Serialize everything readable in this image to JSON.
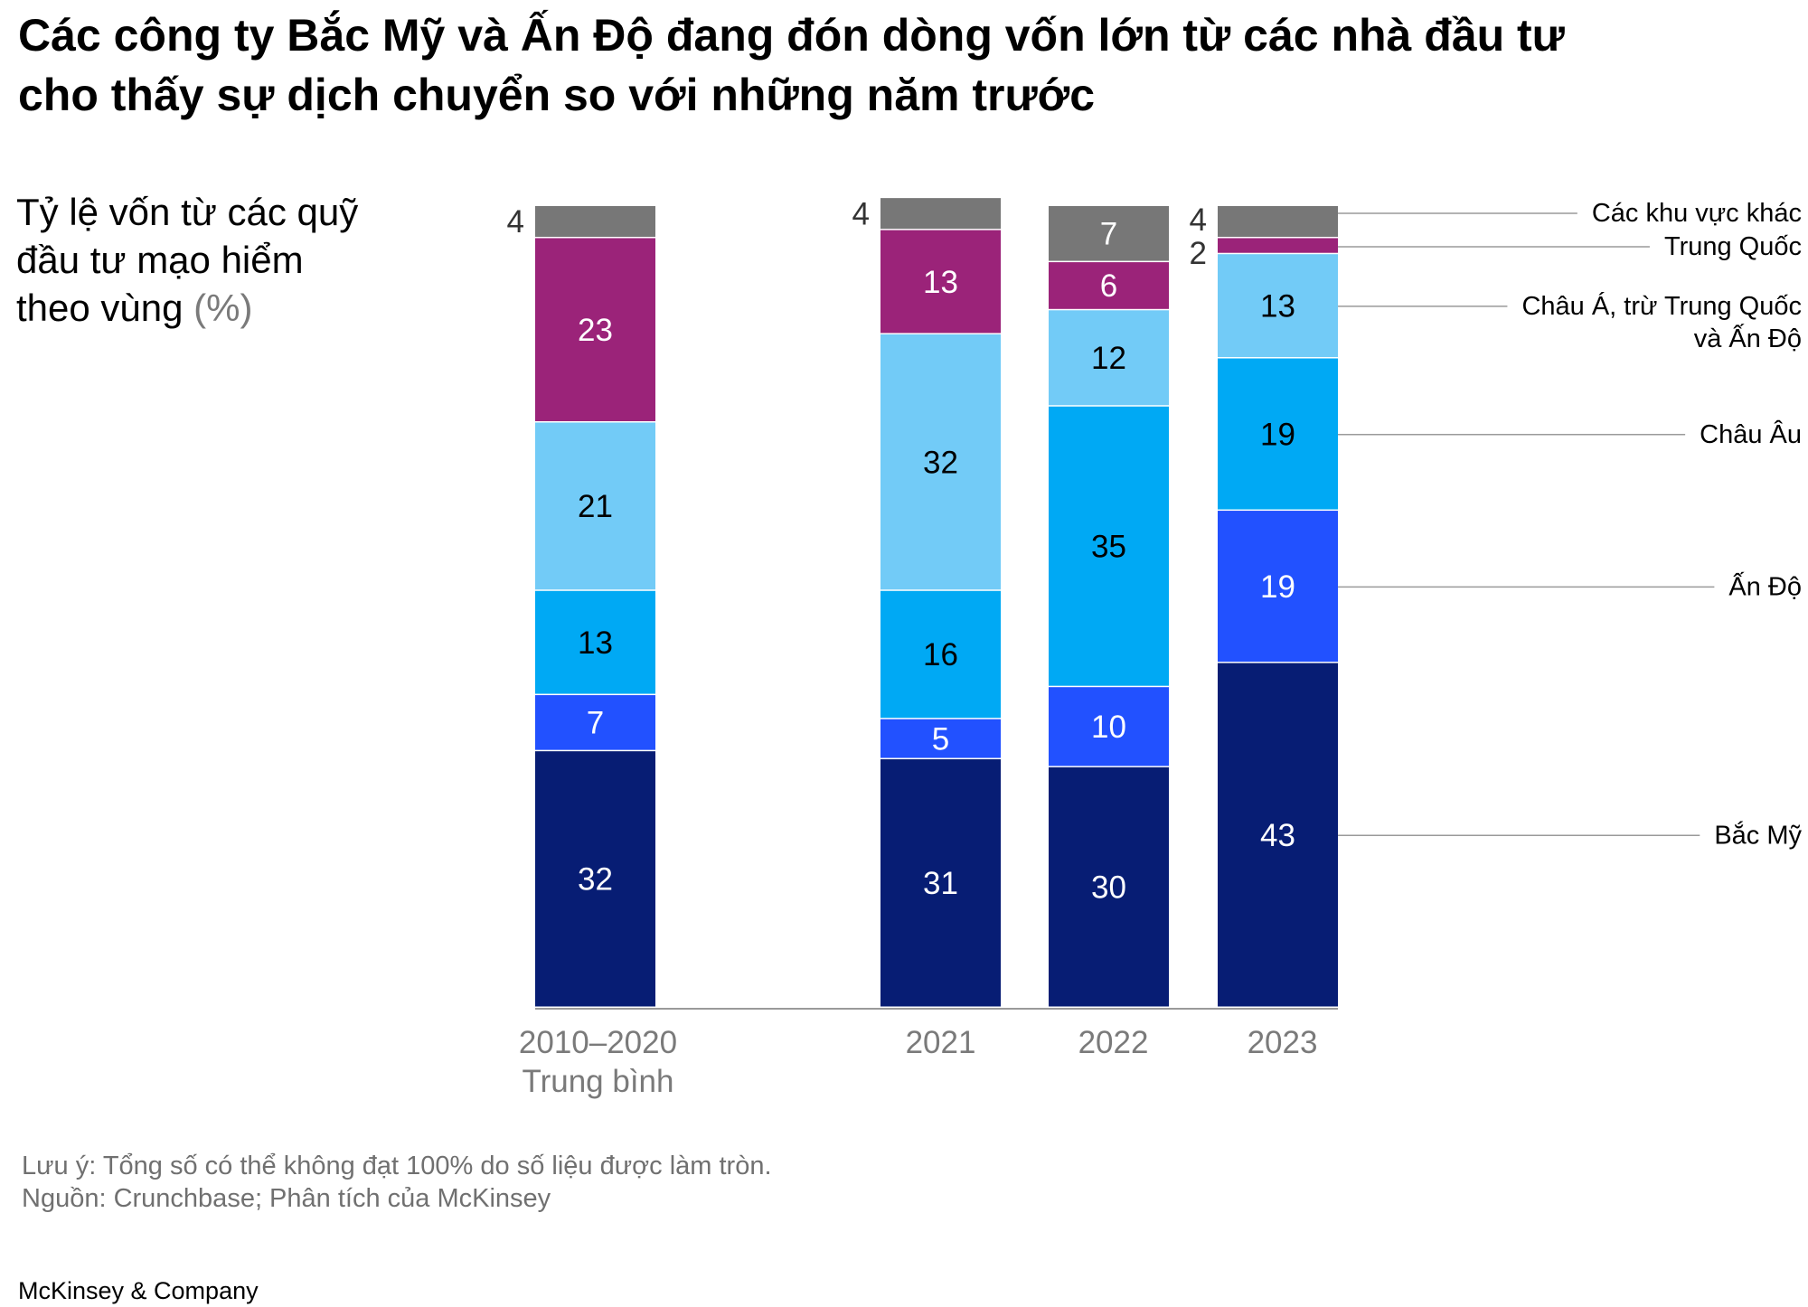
{
  "title_line1": "Các công ty Bắc Mỹ và Ấn Độ đang đón dòng vốn lớn từ các nhà đầu tư",
  "title_line2": "cho thấy sự dịch chuyển so với những năm trước",
  "subtitle": {
    "line1": "Tỷ lệ vốn từ các quỹ",
    "line2": "đầu tư mạo hiểm",
    "line3": "theo vùng",
    "unit": "(%)"
  },
  "footnotes": {
    "note": "Lưu ý: Tổng số có thể không đạt 100% do số liệu được làm tròn.",
    "source": "Nguồn: Crunchbase; Phân tích của McKinsey"
  },
  "brand": "McKinsey & Company",
  "chart_data": {
    "type": "bar",
    "stacked": true,
    "title": "Tỷ lệ vốn từ các quỹ đầu tư mạo hiểm theo vùng (%)",
    "categories": [
      {
        "label": "2010–2020",
        "sublabel": "Trung bình"
      },
      {
        "label": "2021",
        "sublabel": ""
      },
      {
        "label": "2022",
        "sublabel": ""
      },
      {
        "label": "2023",
        "sublabel": ""
      }
    ],
    "series": [
      {
        "name": "Bắc Mỹ",
        "color": "#071d74",
        "label_color": "#ffffff",
        "values": [
          32,
          31,
          30,
          43
        ]
      },
      {
        "name": "Ấn Độ",
        "color": "#2251ff",
        "label_color": "#ffffff",
        "values": [
          7,
          5,
          10,
          19
        ]
      },
      {
        "name": "Châu Âu",
        "color": "#00a9f4",
        "label_color": "#000000",
        "values": [
          13,
          16,
          35,
          19
        ]
      },
      {
        "name": "Châu Á, trừ Trung Quốc và Ấn Độ",
        "legend_lines": [
          "Châu Á, trừ Trung Quốc",
          "và Ấn Độ"
        ],
        "color": "#72cbf7",
        "label_color": "#000000",
        "values": [
          21,
          32,
          12,
          13
        ]
      },
      {
        "name": "Trung Quốc",
        "color": "#9b2379",
        "label_color": "#ffffff",
        "values": [
          23,
          13,
          6,
          2
        ]
      },
      {
        "name": "Các khu vực khác",
        "color": "#777777",
        "label_color": "#ffffff",
        "values": [
          4,
          4,
          7,
          4
        ]
      }
    ],
    "ylim": [
      0,
      100
    ],
    "legend": "right, labels connected to last bar"
  }
}
